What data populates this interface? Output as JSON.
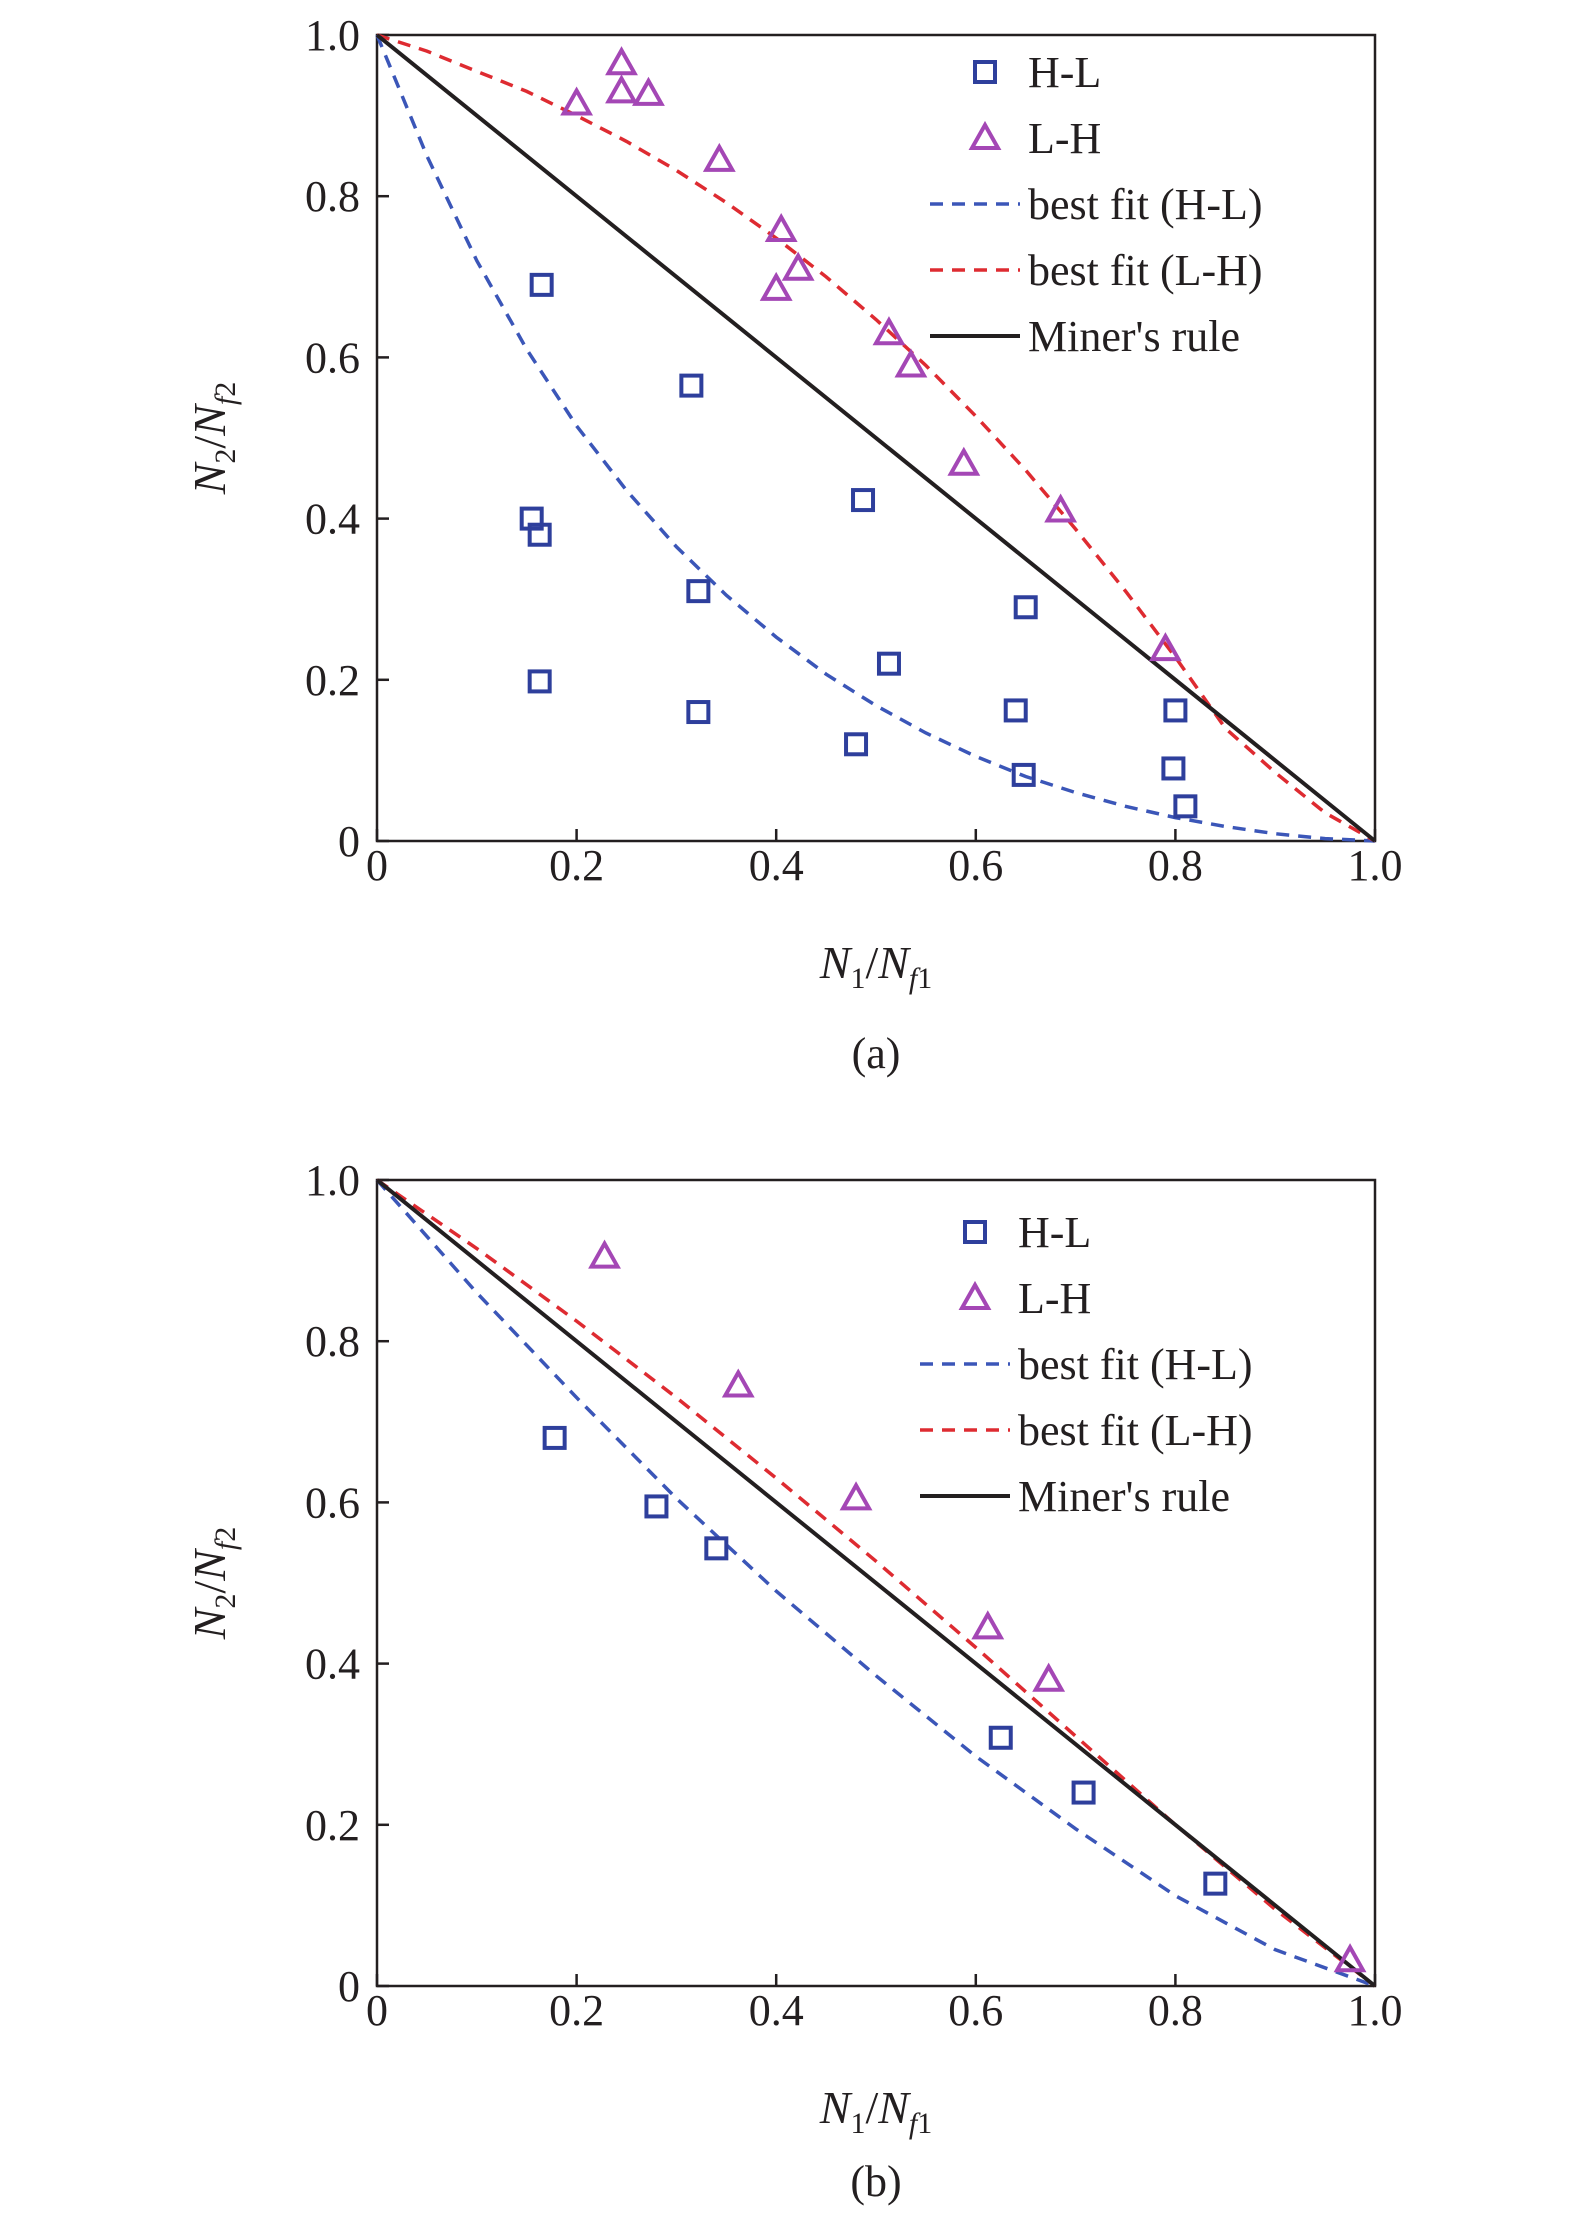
{
  "colors": {
    "hl": "#2e3f9c",
    "lh": "#a447b5",
    "fit_hl": "#3b56b8",
    "fit_lh": "#de2b31",
    "miner": "#231f20",
    "axis": "#231f20"
  },
  "chart_data": [
    {
      "type": "scatter",
      "panel_label": "(a)",
      "xlabel": {
        "base": "N",
        "sub1": "1",
        "slash": "/",
        "base2": "N",
        "sub2i": "f",
        "sub2": "1"
      },
      "ylabel": {
        "base": "N",
        "sub1": "2",
        "slash": "/",
        "base2": "N",
        "sub2i": "f",
        "sub2": "2"
      },
      "xlim": [
        0,
        1.0
      ],
      "ylim": [
        0,
        1.0
      ],
      "xticks": [
        {
          "value": 0,
          "label": "0"
        },
        {
          "value": 0.2,
          "label": "0.2"
        },
        {
          "value": 0.4,
          "label": "0.4"
        },
        {
          "value": 0.6,
          "label": "0.6"
        },
        {
          "value": 0.8,
          "label": "0.8"
        },
        {
          "value": 1.0,
          "label": "1.0"
        }
      ],
      "yticks": [
        {
          "value": 0,
          "label": "0"
        },
        {
          "value": 0.2,
          "label": "0.2"
        },
        {
          "value": 0.4,
          "label": "0.4"
        },
        {
          "value": 0.6,
          "label": "0.6"
        },
        {
          "value": 0.8,
          "label": "0.8"
        },
        {
          "value": 1.0,
          "label": "1.0"
        }
      ],
      "grid": false,
      "legend_position": "top-right",
      "legend": [
        "H-L",
        "L-H",
        "best fit (H-L)",
        "best fit (L-H)",
        "Miner's rule"
      ],
      "series": [
        {
          "name": "H-L",
          "kind": "scatter",
          "marker": "square",
          "points": [
            [
              0.165,
              0.69
            ],
            [
              0.315,
              0.565
            ],
            [
              0.155,
              0.4
            ],
            [
              0.163,
              0.38
            ],
            [
              0.487,
              0.423
            ],
            [
              0.322,
              0.31
            ],
            [
              0.65,
              0.29
            ],
            [
              0.513,
              0.22
            ],
            [
              0.163,
              0.198
            ],
            [
              0.322,
              0.16
            ],
            [
              0.64,
              0.162
            ],
            [
              0.8,
              0.162
            ],
            [
              0.48,
              0.12
            ],
            [
              0.648,
              0.082
            ],
            [
              0.798,
              0.09
            ],
            [
              0.81,
              0.043
            ]
          ]
        },
        {
          "name": "L-H",
          "kind": "scatter",
          "marker": "triangle",
          "points": [
            [
              0.245,
              0.965
            ],
            [
              0.2,
              0.915
            ],
            [
              0.245,
              0.93
            ],
            [
              0.272,
              0.927
            ],
            [
              0.343,
              0.845
            ],
            [
              0.405,
              0.758
            ],
            [
              0.422,
              0.71
            ],
            [
              0.4,
              0.685
            ],
            [
              0.513,
              0.63
            ],
            [
              0.535,
              0.59
            ],
            [
              0.588,
              0.468
            ],
            [
              0.685,
              0.41
            ],
            [
              0.79,
              0.238
            ]
          ]
        },
        {
          "name": "best fit (H-L)",
          "kind": "line",
          "style": "dashed",
          "points": [
            [
              0,
              1.0
            ],
            [
              0.05,
              0.85
            ],
            [
              0.1,
              0.72
            ],
            [
              0.15,
              0.61
            ],
            [
              0.2,
              0.515
            ],
            [
              0.25,
              0.435
            ],
            [
              0.3,
              0.365
            ],
            [
              0.35,
              0.305
            ],
            [
              0.4,
              0.253
            ],
            [
              0.45,
              0.207
            ],
            [
              0.5,
              0.168
            ],
            [
              0.55,
              0.134
            ],
            [
              0.6,
              0.105
            ],
            [
              0.65,
              0.08
            ],
            [
              0.7,
              0.06
            ],
            [
              0.75,
              0.043
            ],
            [
              0.8,
              0.029
            ],
            [
              0.85,
              0.018
            ],
            [
              0.9,
              0.009
            ],
            [
              0.95,
              0.003
            ],
            [
              1.0,
              0
            ]
          ]
        },
        {
          "name": "best fit (L-H)",
          "kind": "line",
          "style": "dashed",
          "points": [
            [
              0,
              1.0
            ],
            [
              0.05,
              0.98
            ],
            [
              0.1,
              0.955
            ],
            [
              0.15,
              0.93
            ],
            [
              0.2,
              0.9
            ],
            [
              0.25,
              0.868
            ],
            [
              0.3,
              0.832
            ],
            [
              0.35,
              0.792
            ],
            [
              0.4,
              0.748
            ],
            [
              0.45,
              0.7
            ],
            [
              0.5,
              0.647
            ],
            [
              0.55,
              0.59
            ],
            [
              0.6,
              0.527
            ],
            [
              0.65,
              0.46
            ],
            [
              0.7,
              0.387
            ],
            [
              0.75,
              0.31
            ],
            [
              0.8,
              0.228
            ],
            [
              0.85,
              0.14
            ],
            [
              0.9,
              0.085
            ],
            [
              0.95,
              0.035
            ],
            [
              1.0,
              0
            ]
          ]
        },
        {
          "name": "Miner's rule",
          "kind": "line",
          "style": "solid",
          "points": [
            [
              0,
              1.0
            ],
            [
              1.0,
              0
            ]
          ]
        }
      ]
    },
    {
      "type": "scatter",
      "panel_label": "(b)",
      "xlabel": {
        "base": "N",
        "sub1": "1",
        "slash": "/",
        "base2": "N",
        "sub2i": "f",
        "sub2": "1"
      },
      "ylabel": {
        "base": "N",
        "sub1": "2",
        "slash": "/",
        "base2": "N",
        "sub2i": "f",
        "sub2": "2"
      },
      "xlim": [
        0,
        1.0
      ],
      "ylim": [
        0,
        1.0
      ],
      "xticks": [
        {
          "value": 0,
          "label": "0"
        },
        {
          "value": 0.2,
          "label": "0.2"
        },
        {
          "value": 0.4,
          "label": "0.4"
        },
        {
          "value": 0.6,
          "label": "0.6"
        },
        {
          "value": 0.8,
          "label": "0.8"
        },
        {
          "value": 1.0,
          "label": "1.0"
        }
      ],
      "yticks": [
        {
          "value": 0,
          "label": "0"
        },
        {
          "value": 0.2,
          "label": "0.2"
        },
        {
          "value": 0.4,
          "label": "0.4"
        },
        {
          "value": 0.6,
          "label": "0.6"
        },
        {
          "value": 0.8,
          "label": "0.8"
        },
        {
          "value": 1.0,
          "label": "1.0"
        }
      ],
      "grid": false,
      "legend_position": "top-right",
      "legend": [
        "H-L",
        "L-H",
        "best fit (H-L)",
        "best fit (L-H)",
        "Miner's rule"
      ],
      "series": [
        {
          "name": "H-L",
          "kind": "scatter",
          "marker": "square",
          "points": [
            [
              0.178,
              0.68
            ],
            [
              0.28,
              0.595
            ],
            [
              0.34,
              0.543
            ],
            [
              0.625,
              0.308
            ],
            [
              0.708,
              0.24
            ],
            [
              0.84,
              0.127
            ]
          ]
        },
        {
          "name": "L-H",
          "kind": "scatter",
          "marker": "triangle",
          "points": [
            [
              0.228,
              0.905
            ],
            [
              0.362,
              0.745
            ],
            [
              0.48,
              0.605
            ],
            [
              0.612,
              0.445
            ],
            [
              0.673,
              0.38
            ],
            [
              0.975,
              0.032
            ]
          ]
        },
        {
          "name": "best fit (H-L)",
          "kind": "line",
          "style": "dashed",
          "points": [
            [
              0,
              1.0
            ],
            [
              0.1,
              0.86
            ],
            [
              0.2,
              0.73
            ],
            [
              0.3,
              0.605
            ],
            [
              0.4,
              0.49
            ],
            [
              0.5,
              0.385
            ],
            [
              0.6,
              0.285
            ],
            [
              0.7,
              0.195
            ],
            [
              0.8,
              0.112
            ],
            [
              0.9,
              0.045
            ],
            [
              1.0,
              0
            ]
          ]
        },
        {
          "name": "best fit (L-H)",
          "kind": "line",
          "style": "dashed",
          "points": [
            [
              0,
              1.0
            ],
            [
              0.1,
              0.915
            ],
            [
              0.2,
              0.825
            ],
            [
              0.3,
              0.73
            ],
            [
              0.4,
              0.63
            ],
            [
              0.5,
              0.527
            ],
            [
              0.6,
              0.42
            ],
            [
              0.7,
              0.31
            ],
            [
              0.8,
              0.2
            ],
            [
              0.9,
              0.095
            ],
            [
              1.0,
              0
            ]
          ]
        },
        {
          "name": "Miner's rule",
          "kind": "line",
          "style": "solid",
          "points": [
            [
              0,
              1.0
            ],
            [
              1.0,
              0
            ]
          ]
        }
      ]
    }
  ]
}
